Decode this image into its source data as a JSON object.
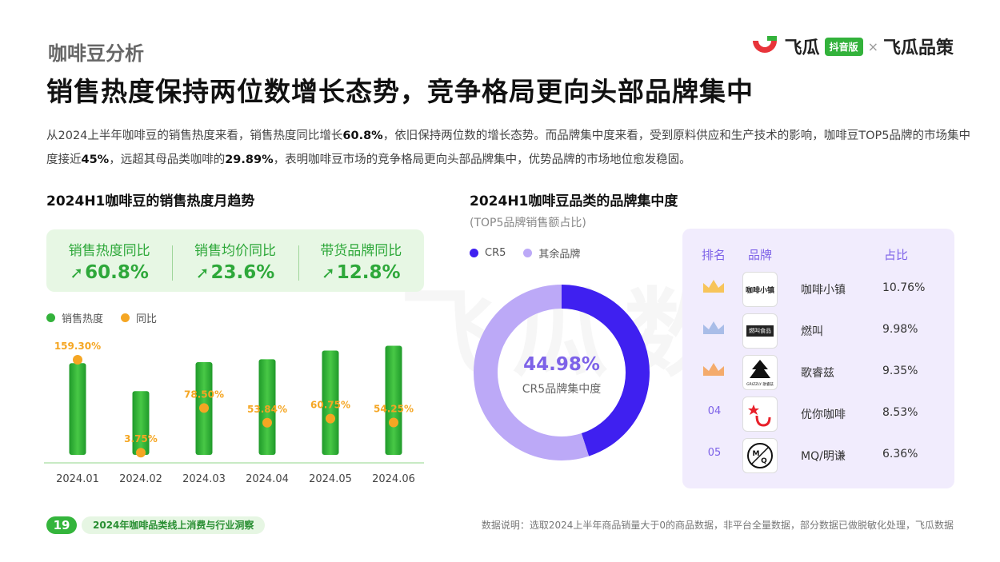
{
  "header": {
    "section": "咖啡豆分析",
    "headline": "销售热度保持两位数增长态势，竞争格局更向头部品牌集中",
    "logo_brand1": "飞瓜",
    "logo_badge": "抖音版",
    "logo_x": "×",
    "logo_brand2": "飞瓜品策"
  },
  "intro": {
    "p1": "从2024上半年咖啡豆的销售热度来看，销售热度同比增长",
    "v1": "60.8%",
    "p2": "，依旧保持两位数的增长态势。而品牌集中度来看，受到原料供应和生产技术的影响，咖啡豆TOP5品牌的市场集中度接近",
    "v2": "45%",
    "p3": "，远超其母品类咖啡的",
    "v3": "29.89%",
    "p4": "，表明咖啡豆市场的竞争格局更向头部品牌集中，优势品牌的市场地位愈发稳固。"
  },
  "left_chart": {
    "title": "2024H1咖啡豆的销售热度月趋势",
    "kpis": [
      {
        "label": "销售热度同比",
        "value": "60.8%"
      },
      {
        "label": "销售均价同比",
        "value": "23.6%"
      },
      {
        "label": "带货品牌同比",
        "value": "12.8%"
      }
    ],
    "legend": [
      "销售热度",
      "同比"
    ]
  },
  "right_chart": {
    "title": "2024H1咖啡豆品类的品牌集中度",
    "subtitle": "(TOP5品牌销售额占比)",
    "legend": [
      "CR5",
      "其余品牌"
    ],
    "center_value": "44.98%",
    "center_label": "CR5品牌集中度",
    "table_headers": {
      "rank": "排名",
      "brand": "品牌",
      "share": "占比"
    },
    "rows": [
      {
        "rank": "",
        "crown": "gold",
        "brand": "咖啡小镇",
        "share": "10.76%",
        "logo_text": "咖啡小镇"
      },
      {
        "rank": "",
        "crown": "silver",
        "brand": "燃叫",
        "share": "9.98%",
        "logo_text": "燃叫食品"
      },
      {
        "rank": "",
        "crown": "bronze",
        "brand": "歌睿兹",
        "share": "9.35%",
        "logo_text": "GRIZZLY 歌睿兹"
      },
      {
        "rank": "04",
        "crown": "",
        "brand": "优你咖啡",
        "share": "8.53%",
        "logo_text": ""
      },
      {
        "rank": "05",
        "crown": "",
        "brand": "MQ/明谦",
        "share": "6.36%",
        "logo_text": "M/Q"
      }
    ]
  },
  "chart_data": [
    {
      "type": "bar",
      "title": "2024H1咖啡豆的销售热度月趋势",
      "categories": [
        "2024.01",
        "2024.02",
        "2024.03",
        "2024.04",
        "2024.05",
        "2024.06"
      ],
      "series": [
        {
          "name": "销售热度",
          "values": [
            95,
            66,
            96,
            99,
            108,
            113
          ]
        },
        {
          "name": "同比",
          "values": [
            159.3,
            3.75,
            78.5,
            53.84,
            60.75,
            54.25
          ],
          "labels": [
            "159.30%",
            "3.75%",
            "78.50%",
            "53.84%",
            "60.75%",
            "54.25%"
          ]
        }
      ],
      "legend_position": "top-left"
    },
    {
      "type": "pie",
      "title": "2024H1咖啡豆品类的品牌集中度",
      "categories": [
        "CR5",
        "其余品牌"
      ],
      "values": [
        44.98,
        55.02
      ],
      "colors": [
        "#3f20f0",
        "#bca9f7"
      ]
    }
  ],
  "footer": {
    "page": "19",
    "report": "2024年咖啡品类线上消费与行业洞察",
    "note": "数据说明：选取2024上半年商品销量大于0的商品数据，非平台全量数据，部分数据已做脱敏化处理，飞瓜数据"
  },
  "colors": {
    "green": "#33b23b",
    "orange": "#f5a623",
    "purple": "#7d62e8",
    "blue": "#3f20f0"
  }
}
